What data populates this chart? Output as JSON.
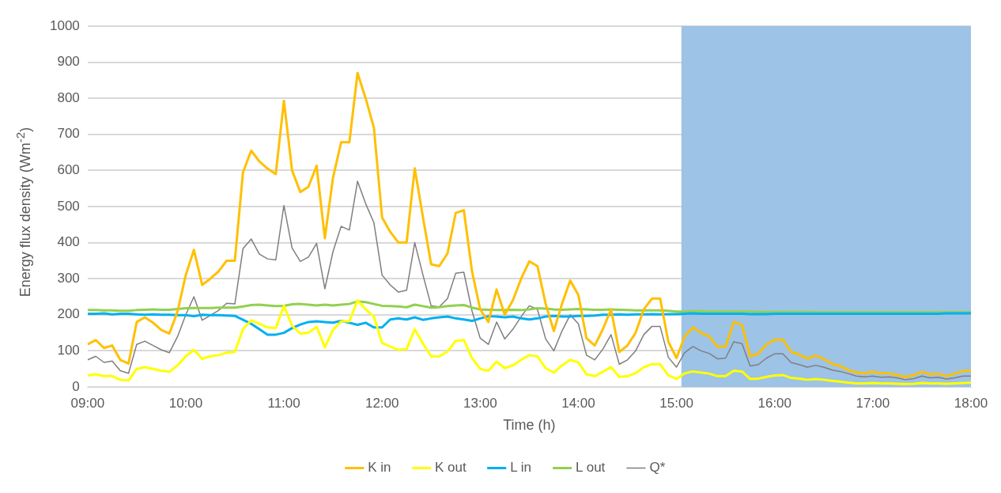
{
  "chart_data": {
    "type": "line",
    "xlabel": "Time (h)",
    "ylabel": "Energy flux density (Wm$^{-2}$)",
    "x": [
      9,
      9.083,
      9.167,
      9.25,
      9.333,
      9.417,
      9.5,
      9.583,
      9.667,
      9.75,
      9.833,
      9.917,
      10,
      10.083,
      10.167,
      10.25,
      10.333,
      10.417,
      10.5,
      10.583,
      10.667,
      10.75,
      10.833,
      10.917,
      11,
      11.083,
      11.167,
      11.25,
      11.333,
      11.417,
      11.5,
      11.583,
      11.667,
      11.75,
      11.833,
      11.917,
      12,
      12.083,
      12.167,
      12.25,
      12.333,
      12.417,
      12.5,
      12.583,
      12.667,
      12.75,
      12.833,
      12.917,
      13,
      13.083,
      13.167,
      13.25,
      13.333,
      13.417,
      13.5,
      13.583,
      13.667,
      13.75,
      13.833,
      13.917,
      14,
      14.083,
      14.167,
      14.25,
      14.333,
      14.417,
      14.5,
      14.583,
      14.667,
      14.75,
      14.833,
      14.917,
      15,
      15.083,
      15.167,
      15.25,
      15.333,
      15.417,
      15.5,
      15.583,
      15.667,
      15.75,
      15.833,
      15.917,
      16,
      16.083,
      16.167,
      16.25,
      16.333,
      16.417,
      16.5,
      16.583,
      16.667,
      16.75,
      16.833,
      16.917,
      17,
      17.083,
      17.167,
      17.25,
      17.333,
      17.417,
      17.5,
      17.583,
      17.667,
      17.75,
      17.833,
      17.917,
      18
    ],
    "series": [
      {
        "name": "K in",
        "color": "#ffc000",
        "values": [
          118,
          130,
          108,
          115,
          75,
          65,
          180,
          193,
          178,
          158,
          148,
          210,
          310,
          380,
          283,
          300,
          320,
          350,
          350,
          595,
          655,
          625,
          605,
          590,
          793,
          600,
          540,
          555,
          613,
          412,
          580,
          678,
          678,
          870,
          800,
          718,
          470,
          430,
          400,
          400,
          606,
          470,
          340,
          335,
          370,
          482,
          490,
          320,
          215,
          180,
          270,
          200,
          240,
          300,
          348,
          335,
          230,
          155,
          230,
          295,
          255,
          135,
          115,
          160,
          215,
          97,
          115,
          150,
          215,
          245,
          245,
          125,
          80,
          140,
          165,
          150,
          140,
          112,
          112,
          180,
          172,
          85,
          92,
          118,
          131,
          131,
          97,
          90,
          78,
          87,
          78,
          64,
          58,
          47,
          40,
          38,
          42,
          38,
          38,
          33,
          28,
          33,
          42,
          35,
          37,
          30,
          37,
          44,
          45
        ]
      },
      {
        "name": "K out",
        "color": "#ffff00",
        "values": [
          32,
          35,
          30,
          30,
          20,
          18,
          50,
          55,
          50,
          45,
          42,
          60,
          85,
          103,
          78,
          85,
          88,
          95,
          97,
          160,
          185,
          175,
          165,
          163,
          225,
          170,
          148,
          150,
          167,
          110,
          158,
          182,
          182,
          240,
          215,
          195,
          122,
          112,
          103,
          105,
          160,
          120,
          85,
          85,
          98,
          128,
          130,
          80,
          50,
          45,
          70,
          52,
          60,
          75,
          88,
          85,
          52,
          40,
          60,
          75,
          68,
          35,
          30,
          42,
          55,
          28,
          30,
          38,
          55,
          63,
          63,
          32,
          22,
          38,
          43,
          40,
          37,
          30,
          30,
          45,
          43,
          22,
          23,
          28,
          32,
          33,
          25,
          23,
          20,
          22,
          20,
          17,
          15,
          12,
          10,
          10,
          11,
          10,
          10,
          9,
          8,
          9,
          11,
          10,
          10,
          9,
          10,
          11,
          12
        ]
      },
      {
        "name": "L in",
        "color": "#00b0f0",
        "values": [
          203,
          203,
          204,
          201,
          203,
          203,
          201,
          200,
          201,
          200,
          200,
          199,
          199,
          196,
          200,
          199,
          199,
          198,
          197,
          186,
          175,
          160,
          145,
          145,
          150,
          163,
          173,
          180,
          182,
          180,
          178,
          183,
          178,
          172,
          178,
          165,
          165,
          187,
          190,
          187,
          193,
          186,
          190,
          193,
          195,
          190,
          187,
          183,
          190,
          196,
          195,
          193,
          195,
          190,
          187,
          190,
          195,
          197,
          195,
          195,
          197,
          197,
          198,
          200,
          200,
          201,
          200,
          201,
          201,
          202,
          201,
          202,
          202,
          203,
          204,
          203,
          203,
          203,
          203,
          203,
          203,
          202,
          202,
          202,
          203,
          203,
          203,
          203,
          203,
          203,
          203,
          203,
          203,
          203,
          203,
          203,
          203,
          203,
          203,
          203,
          203,
          203,
          203,
          203,
          203,
          204,
          204,
          204,
          204
        ]
      },
      {
        "name": "L out",
        "color": "#92d050",
        "values": [
          213,
          213,
          212,
          212,
          211,
          211,
          213,
          214,
          215,
          214,
          214,
          216,
          218,
          219,
          219,
          219,
          220,
          220,
          220,
          223,
          227,
          228,
          226,
          224,
          225,
          229,
          230,
          228,
          226,
          228,
          226,
          228,
          230,
          237,
          235,
          230,
          225,
          224,
          223,
          221,
          228,
          224,
          220,
          221,
          224,
          226,
          227,
          220,
          215,
          214,
          213,
          213,
          214,
          213,
          215,
          218,
          217,
          215,
          214,
          215,
          216,
          215,
          214,
          214,
          215,
          214,
          213,
          212,
          212,
          212,
          212,
          211,
          209,
          209,
          210,
          210,
          209,
          209,
          209,
          209,
          209,
          209,
          208,
          208,
          208,
          208,
          208,
          208,
          208,
          207,
          207,
          207,
          207,
          207,
          207,
          207,
          207,
          207,
          207,
          207,
          207,
          207,
          207,
          207,
          207,
          207,
          207,
          207,
          207
        ]
      },
      {
        "name": "Q*",
        "color": "#7f7f7f",
        "values": [
          75,
          85,
          68,
          72,
          45,
          38,
          118,
          127,
          115,
          103,
          95,
          140,
          200,
          250,
          185,
          198,
          212,
          232,
          230,
          383,
          410,
          368,
          355,
          352,
          503,
          385,
          348,
          360,
          398,
          272,
          375,
          445,
          435,
          570,
          508,
          455,
          310,
          283,
          263,
          268,
          400,
          310,
          225,
          222,
          245,
          315,
          318,
          210,
          135,
          118,
          180,
          133,
          160,
          195,
          225,
          215,
          133,
          100,
          155,
          200,
          175,
          88,
          75,
          105,
          145,
          63,
          75,
          100,
          145,
          168,
          168,
          82,
          55,
          95,
          112,
          100,
          93,
          78,
          80,
          125,
          120,
          58,
          62,
          80,
          92,
          92,
          68,
          62,
          55,
          60,
          55,
          47,
          43,
          37,
          30,
          28,
          30,
          27,
          28,
          25,
          20,
          23,
          30,
          25,
          27,
          22,
          25,
          30,
          30
        ]
      }
    ],
    "xlim": [
      9,
      18
    ],
    "xticks": [
      {
        "value": 9,
        "label": "09:00"
      },
      {
        "value": 10,
        "label": "10:00"
      },
      {
        "value": 11,
        "label": "11:00"
      },
      {
        "value": 12,
        "label": "12:00"
      },
      {
        "value": 13,
        "label": "13:00"
      },
      {
        "value": 14,
        "label": "14:00"
      },
      {
        "value": 15,
        "label": "15:00"
      },
      {
        "value": 16,
        "label": "16:00"
      },
      {
        "value": 17,
        "label": "17:00"
      },
      {
        "value": 18,
        "label": "18:00"
      }
    ],
    "ylim": [
      0,
      1000
    ],
    "yticks": [
      0,
      100,
      200,
      300,
      400,
      500,
      600,
      700,
      800,
      900,
      1000
    ],
    "bands": [
      {
        "axis": "x",
        "from": 15.05,
        "to": 18,
        "color": "#9dc3e6"
      }
    ],
    "grid": "y",
    "legend": "bottom",
    "marker": "none",
    "line_style": "solid"
  }
}
